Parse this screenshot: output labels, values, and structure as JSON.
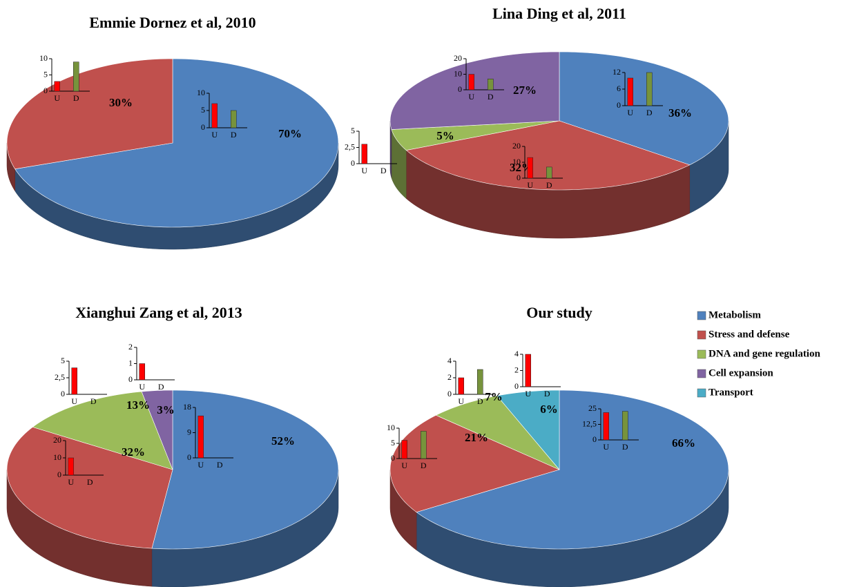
{
  "chart_data": [
    {
      "type": "pie",
      "title": "Emmie Dornez et al, 2010",
      "categories": [
        "Metabolism",
        "Stress and defense"
      ],
      "values": [
        70,
        30
      ],
      "value_labels": [
        "70%",
        "30%"
      ],
      "colors": [
        "#4f81bd",
        "#c0504d"
      ],
      "insets": [
        {
          "type": "bar",
          "categories": [
            "U",
            "D"
          ],
          "values": [
            7,
            5
          ],
          "ylim": [
            0,
            10
          ],
          "yticks": [
            0,
            5,
            10
          ],
          "colors": [
            "#ff0000",
            "#77933c"
          ]
        },
        {
          "type": "bar",
          "categories": [
            "U",
            "D"
          ],
          "values": [
            3,
            9
          ],
          "ylim": [
            0,
            10
          ],
          "yticks": [
            0,
            5,
            10
          ],
          "colors": [
            "#ff0000",
            "#77933c"
          ]
        }
      ]
    },
    {
      "type": "pie",
      "title": "Lina Ding et al, 2011",
      "categories": [
        "Metabolism",
        "Stress and defense",
        "DNA and gene regulation",
        "Cell expansion"
      ],
      "values": [
        36,
        32,
        5,
        27
      ],
      "value_labels": [
        "36%",
        "32%",
        "5%",
        "27%"
      ],
      "colors": [
        "#4f81bd",
        "#c0504d",
        "#9bbb59",
        "#8064a2"
      ],
      "insets": [
        {
          "type": "bar",
          "categories": [
            "U",
            "D"
          ],
          "values": [
            10,
            12
          ],
          "ylim": [
            0,
            12
          ],
          "yticks": [
            0,
            6,
            12
          ],
          "colors": [
            "#ff0000",
            "#77933c"
          ]
        },
        {
          "type": "bar",
          "categories": [
            "U",
            "D"
          ],
          "values": [
            13,
            7
          ],
          "ylim": [
            0,
            20
          ],
          "yticks": [
            0,
            10,
            20
          ],
          "colors": [
            "#ff0000",
            "#77933c"
          ]
        },
        {
          "type": "bar",
          "categories": [
            "U",
            "D"
          ],
          "values": [
            3,
            0
          ],
          "ylim": [
            0,
            5
          ],
          "yticks": [
            0,
            {
              "value": 2.5,
              "label": "2,5"
            },
            5
          ],
          "colors": [
            "#ff0000",
            "#77933c"
          ]
        },
        {
          "type": "bar",
          "categories": [
            "U",
            "D"
          ],
          "values": [
            10,
            7
          ],
          "ylim": [
            0,
            20
          ],
          "yticks": [
            0,
            10,
            20
          ],
          "colors": [
            "#ff0000",
            "#77933c"
          ]
        }
      ]
    },
    {
      "type": "pie",
      "title": "Xianghui Zang et al, 2013",
      "categories": [
        "Metabolism",
        "Stress and defense",
        "DNA and gene regulation",
        "Cell expansion"
      ],
      "values": [
        52,
        32,
        13,
        3
      ],
      "value_labels": [
        "52%",
        "32%",
        "13%",
        "3%"
      ],
      "colors": [
        "#4f81bd",
        "#c0504d",
        "#9bbb59",
        "#8064a2"
      ],
      "insets": [
        {
          "type": "bar",
          "categories": [
            "U",
            "D"
          ],
          "values": [
            15,
            0
          ],
          "ylim": [
            0,
            18
          ],
          "yticks": [
            0,
            9,
            18
          ],
          "colors": [
            "#ff0000",
            "#77933c"
          ]
        },
        {
          "type": "bar",
          "categories": [
            "U",
            "D"
          ],
          "values": [
            10,
            0
          ],
          "ylim": [
            0,
            20
          ],
          "yticks": [
            0,
            10,
            20
          ],
          "colors": [
            "#ff0000",
            "#77933c"
          ]
        },
        {
          "type": "bar",
          "categories": [
            "U",
            "D"
          ],
          "values": [
            4,
            0
          ],
          "ylim": [
            0,
            5
          ],
          "yticks": [
            0,
            {
              "value": 2.5,
              "label": "2,5"
            },
            5
          ],
          "colors": [
            "#ff0000",
            "#77933c"
          ]
        },
        {
          "type": "bar",
          "categories": [
            "U",
            "D"
          ],
          "values": [
            1,
            0
          ],
          "ylim": [
            0,
            2
          ],
          "yticks": [
            0,
            1,
            2
          ],
          "colors": [
            "#ff0000",
            "#77933c"
          ]
        }
      ]
    },
    {
      "type": "pie",
      "title": "Our study",
      "categories": [
        "Metabolism",
        "Stress and defense",
        "DNA and gene regulation",
        "Transport"
      ],
      "values": [
        66,
        21,
        7,
        6
      ],
      "value_labels": [
        "66%",
        "21%",
        "7%",
        "6%"
      ],
      "colors": [
        "#4f81bd",
        "#c0504d",
        "#9bbb59",
        "#4bacc6"
      ],
      "insets": [
        {
          "type": "bar",
          "categories": [
            "U",
            "D"
          ],
          "values": [
            22,
            23
          ],
          "ylim": [
            0,
            25
          ],
          "yticks": [
            0,
            {
              "value": 12.5,
              "label": "12,5"
            },
            25
          ],
          "colors": [
            "#ff0000",
            "#77933c"
          ]
        },
        {
          "type": "bar",
          "categories": [
            "U",
            "D"
          ],
          "values": [
            6,
            9
          ],
          "ylim": [
            0,
            10
          ],
          "yticks": [
            0,
            5,
            10
          ],
          "colors": [
            "#ff0000",
            "#77933c"
          ]
        },
        {
          "type": "bar",
          "categories": [
            "U",
            "D"
          ],
          "values": [
            2,
            3
          ],
          "ylim": [
            0,
            4
          ],
          "yticks": [
            0,
            2,
            4
          ],
          "colors": [
            "#ff0000",
            "#77933c"
          ]
        },
        {
          "type": "bar",
          "categories": [
            "U",
            "D"
          ],
          "values": [
            4,
            0
          ],
          "ylim": [
            0,
            4
          ],
          "yticks": [
            0,
            2,
            4
          ],
          "colors": [
            "#ff0000",
            "#77933c"
          ]
        }
      ]
    }
  ],
  "legend": {
    "labels": [
      "Metabolism",
      "Stress and defense",
      "DNA and gene regulation",
      "Cell expansion",
      "Transport"
    ],
    "colors": [
      "#4f81bd",
      "#c0504d",
      "#9bbb59",
      "#8064a2",
      "#4bacc6"
    ],
    "position": "right"
  }
}
